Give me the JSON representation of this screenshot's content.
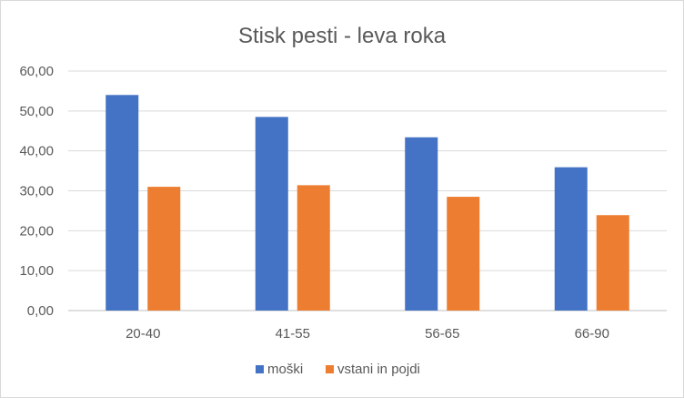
{
  "chart_data": {
    "type": "bar",
    "title": "Stisk pesti - leva roka",
    "xlabel": "",
    "ylabel": "",
    "categories": [
      "20-40",
      "41-55",
      "56-65",
      "66-90"
    ],
    "series": [
      {
        "name": "moški",
        "values": [
          54.0,
          48.5,
          43.4,
          35.9
        ],
        "color": "#4472c4"
      },
      {
        "name": "vstani in pojdi",
        "values": [
          31.0,
          31.4,
          28.5,
          23.9
        ],
        "color": "#ed7d31"
      }
    ],
    "ylim": [
      0,
      60
    ],
    "yticks": [
      "0,00",
      "10,00",
      "20,00",
      "30,00",
      "40,00",
      "50,00",
      "60,00"
    ],
    "grid": true,
    "legend_position": "bottom"
  }
}
